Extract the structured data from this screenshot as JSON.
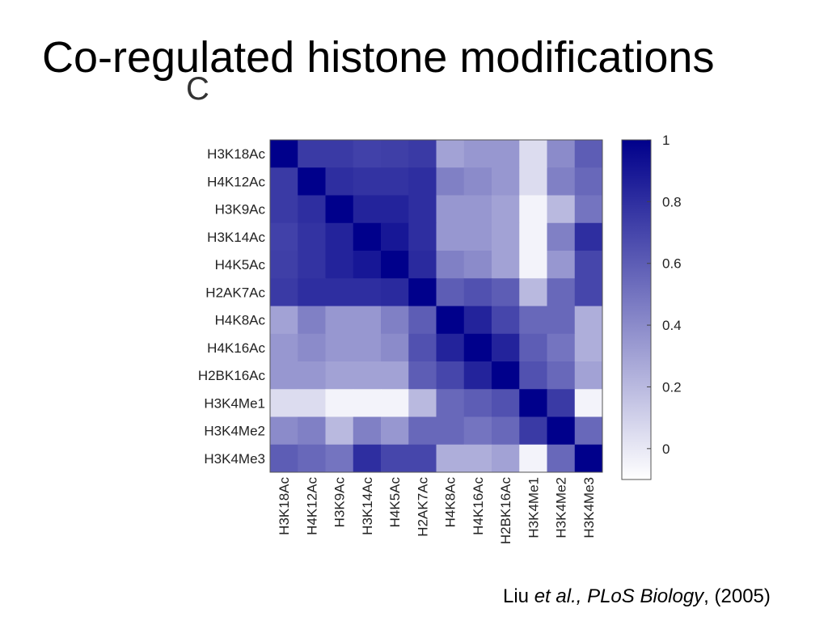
{
  "slide": {
    "title": "Co-regulated histone modifications",
    "panel_label": "C",
    "citation": {
      "author": "Liu",
      "etal": "et al., PLoS Biology",
      "rest": ", (2005)"
    }
  },
  "chart_data": {
    "type": "heatmap",
    "row_labels": [
      "H3K18Ac",
      "H4K12Ac",
      "H3K9Ac",
      "H3K14Ac",
      "H4K5Ac",
      "H2AK7Ac",
      "H4K8Ac",
      "H4K16Ac",
      "H2BK16Ac",
      "H3K4Me1",
      "H3K4Me2",
      "H3K4Me3"
    ],
    "col_labels": [
      "H3K18Ac",
      "H4K12Ac",
      "H3K9Ac",
      "H3K14Ac",
      "H4K5Ac",
      "H2AK7Ac",
      "H4K8Ac",
      "H4K16Ac",
      "H2BK16Ac",
      "H3K4Me1",
      "H3K4Me2",
      "H3K4Me3"
    ],
    "values": [
      [
        1.0,
        0.75,
        0.75,
        0.72,
        0.73,
        0.75,
        0.3,
        0.35,
        0.35,
        0.05,
        0.4,
        0.6
      ],
      [
        0.75,
        1.0,
        0.8,
        0.78,
        0.78,
        0.8,
        0.45,
        0.4,
        0.35,
        0.05,
        0.45,
        0.55
      ],
      [
        0.75,
        0.8,
        1.0,
        0.85,
        0.85,
        0.8,
        0.35,
        0.35,
        0.3,
        -0.05,
        0.2,
        0.5
      ],
      [
        0.72,
        0.78,
        0.85,
        1.0,
        0.9,
        0.8,
        0.35,
        0.35,
        0.3,
        -0.05,
        0.45,
        0.8
      ],
      [
        0.73,
        0.78,
        0.85,
        0.9,
        1.0,
        0.82,
        0.45,
        0.4,
        0.3,
        -0.05,
        0.35,
        0.7
      ],
      [
        0.75,
        0.8,
        0.8,
        0.8,
        0.82,
        1.0,
        0.6,
        0.65,
        0.6,
        0.2,
        0.55,
        0.7
      ],
      [
        0.3,
        0.45,
        0.35,
        0.35,
        0.45,
        0.6,
        1.0,
        0.85,
        0.7,
        0.55,
        0.55,
        0.25
      ],
      [
        0.35,
        0.4,
        0.35,
        0.35,
        0.4,
        0.65,
        0.85,
        1.0,
        0.85,
        0.6,
        0.5,
        0.25
      ],
      [
        0.35,
        0.35,
        0.3,
        0.3,
        0.3,
        0.6,
        0.7,
        0.85,
        1.0,
        0.65,
        0.55,
        0.3
      ],
      [
        0.05,
        0.05,
        -0.05,
        -0.05,
        -0.05,
        0.2,
        0.55,
        0.6,
        0.65,
        1.0,
        0.75,
        -0.05
      ],
      [
        0.4,
        0.45,
        0.2,
        0.45,
        0.35,
        0.55,
        0.55,
        0.5,
        0.55,
        0.75,
        1.0,
        0.55
      ],
      [
        0.6,
        0.55,
        0.5,
        0.8,
        0.7,
        0.7,
        0.25,
        0.25,
        0.3,
        -0.05,
        0.55,
        1.0
      ]
    ],
    "colorbar": {
      "ticks": [
        1,
        0.8,
        0.6,
        0.4,
        0.2,
        0
      ],
      "tick_labels": [
        "1",
        "0.8",
        "0.6",
        "0.4",
        "0.2",
        "0"
      ],
      "range": [
        -0.1,
        1.0
      ],
      "color_low": "#ffffff",
      "color_high": "#00008b"
    },
    "title": "",
    "xlabel": "",
    "ylabel": ""
  }
}
